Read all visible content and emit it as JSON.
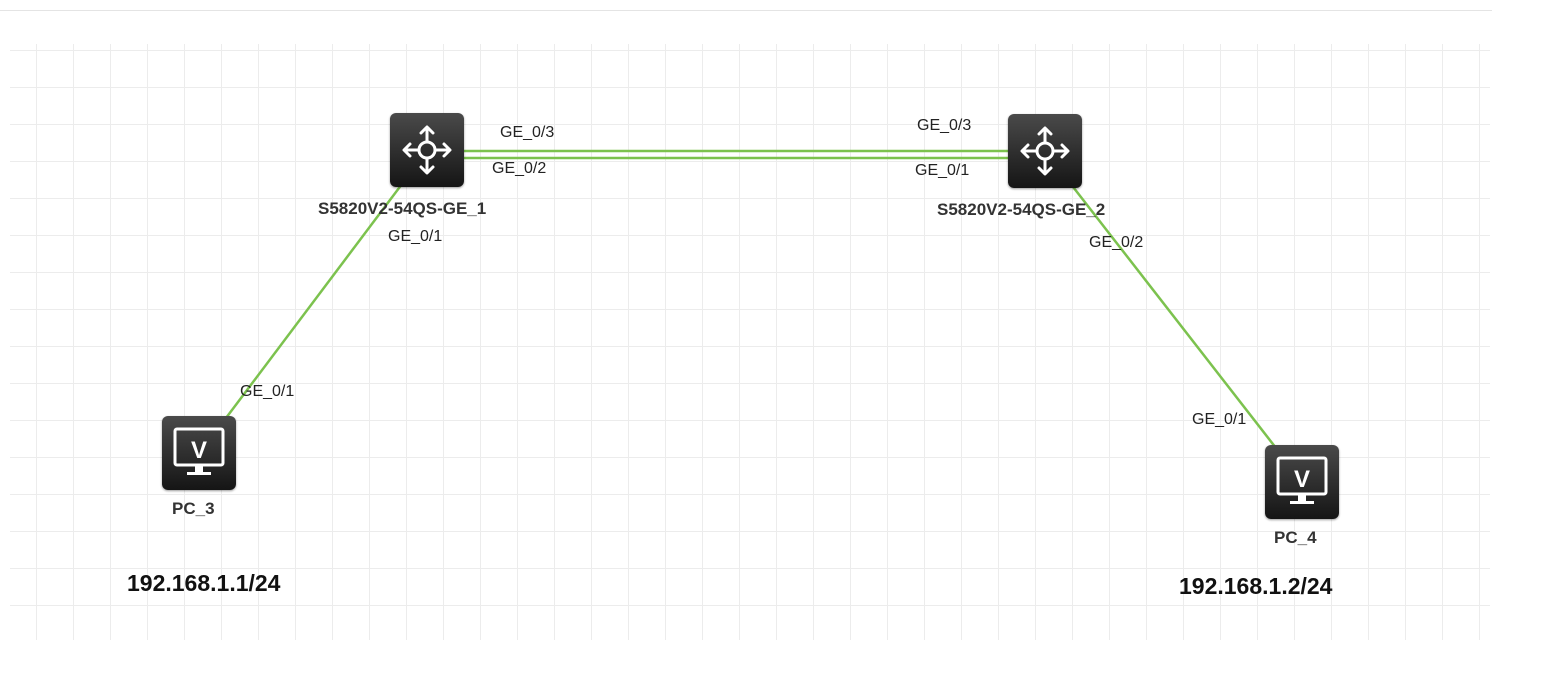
{
  "switches": [
    {
      "name": "S5820V2-54QS-GE_1",
      "icon": "router-switch-icon"
    },
    {
      "name": "S5820V2-54QS-GE_2",
      "icon": "router-switch-icon"
    }
  ],
  "pcs": [
    {
      "name": "PC_3",
      "ip": "192.168.1.1/24",
      "icon": "pc-monitor-icon",
      "glyph": "V"
    },
    {
      "name": "PC_4",
      "ip": "192.168.1.2/24",
      "icon": "pc-monitor-icon",
      "glyph": "V"
    }
  ],
  "ports": {
    "sw1_ge03": "GE_0/3",
    "sw1_ge02": "GE_0/2",
    "sw1_ge01": "GE_0/1",
    "sw2_ge03": "GE_0/3",
    "sw2_ge01": "GE_0/1",
    "sw2_ge02": "GE_0/2",
    "pc3_ge01": "GE_0/1",
    "pc4_ge01": "GE_0/1"
  },
  "colors": {
    "link": "#7cc24e",
    "device": "#2b2b2b",
    "grid": "#ececec"
  }
}
